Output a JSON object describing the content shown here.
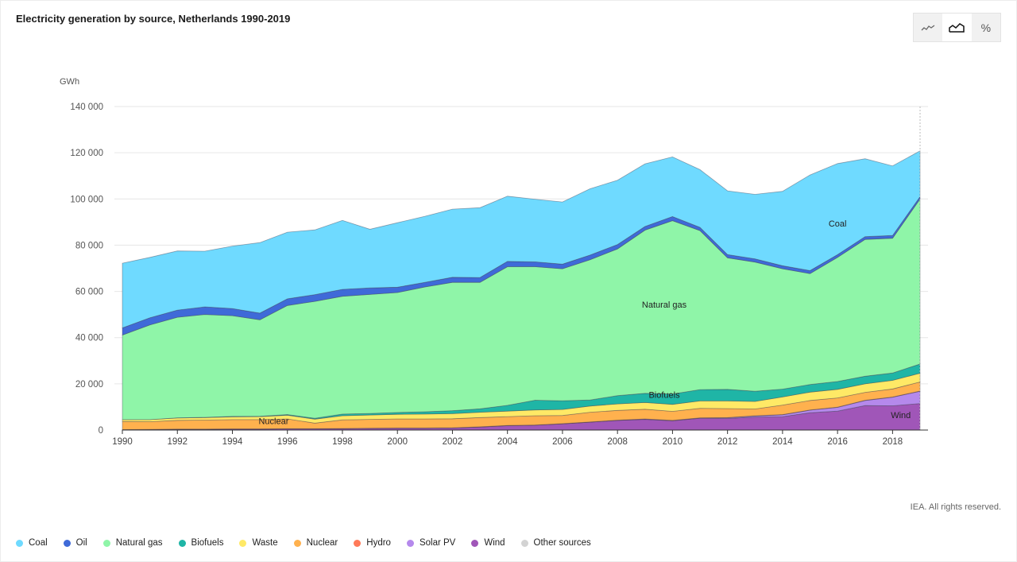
{
  "title": "Electricity generation by source, Netherlands 1990-2019",
  "credit": "IEA. All rights reserved.",
  "toolbar": {
    "buttons": [
      {
        "icon": "line-chart-icon",
        "active": false
      },
      {
        "icon": "area-chart-icon",
        "active": true
      },
      {
        "icon": "percent-icon",
        "label": "%",
        "active": false
      }
    ]
  },
  "legend": [
    {
      "name": "Coal",
      "color": "#6fdaff"
    },
    {
      "name": "Oil",
      "color": "#3f6ad8"
    },
    {
      "name": "Natural gas",
      "color": "#8ff5a8"
    },
    {
      "name": "Biofuels",
      "color": "#1fb5a6"
    },
    {
      "name": "Waste",
      "color": "#ffe966"
    },
    {
      "name": "Nuclear",
      "color": "#ffb14e"
    },
    {
      "name": "Hydro",
      "color": "#ff7a59"
    },
    {
      "name": "Solar PV",
      "color": "#b589ec"
    },
    {
      "name": "Wind",
      "color": "#a056b8"
    },
    {
      "name": "Other sources",
      "color": "#d3d3d3"
    }
  ],
  "chart_data": {
    "type": "area",
    "stacked": true,
    "ylabel": "GWh",
    "ylim": [
      0,
      140000
    ],
    "yticks": [
      0,
      20000,
      40000,
      60000,
      80000,
      100000,
      120000,
      140000
    ],
    "ytick_labels": [
      "0",
      "20 000",
      "40 000",
      "60 000",
      "80 000",
      "100 000",
      "120 000",
      "140 000"
    ],
    "xlim": [
      1990,
      2019
    ],
    "xticks": [
      1990,
      1992,
      1994,
      1996,
      1998,
      2000,
      2002,
      2004,
      2006,
      2008,
      2010,
      2012,
      2014,
      2016,
      2018
    ],
    "x": [
      1990,
      1991,
      1992,
      1993,
      1994,
      1995,
      1996,
      1997,
      1998,
      1999,
      2000,
      2001,
      2002,
      2003,
      2004,
      2005,
      2006,
      2007,
      2008,
      2009,
      2010,
      2011,
      2012,
      2013,
      2014,
      2015,
      2016,
      2017,
      2018,
      2019
    ],
    "grid": true,
    "series": [
      {
        "name": "Wind",
        "color": "#a056b8",
        "values": [
          100,
          200,
          300,
          300,
          400,
          400,
          500,
          500,
          600,
          700,
          800,
          800,
          900,
          1300,
          1900,
          2100,
          2700,
          3400,
          4200,
          4600,
          4000,
          5100,
          5000,
          5600,
          5800,
          7500,
          8200,
          10600,
          10500,
          11500
        ]
      },
      {
        "name": "Solar PV",
        "color": "#b589ec",
        "values": [
          0,
          0,
          0,
          0,
          0,
          0,
          0,
          0,
          0,
          0,
          0,
          0,
          0,
          0,
          0,
          0,
          0,
          0,
          0,
          100,
          100,
          100,
          300,
          500,
          800,
          1100,
          1600,
          2200,
          3700,
          5300
        ]
      },
      {
        "name": "Hydro",
        "color": "#ff7a59",
        "values": [
          100,
          100,
          100,
          100,
          100,
          100,
          100,
          100,
          100,
          100,
          100,
          100,
          100,
          100,
          100,
          100,
          100,
          100,
          100,
          100,
          100,
          100,
          100,
          100,
          100,
          100,
          100,
          100,
          100,
          100
        ]
      },
      {
        "name": "Nuclear",
        "color": "#ffb14e",
        "values": [
          3500,
          3300,
          3800,
          3900,
          4000,
          4000,
          4200,
          2400,
          3700,
          3800,
          3900,
          3900,
          3900,
          4000,
          3800,
          4000,
          3500,
          4200,
          4200,
          4200,
          3900,
          4100,
          3900,
          2900,
          4100,
          4100,
          4000,
          3400,
          3500,
          3900
        ]
      },
      {
        "name": "Waste",
        "color": "#ffe966",
        "values": [
          800,
          900,
          1000,
          1100,
          1200,
          1300,
          1600,
          1700,
          1800,
          1900,
          2000,
          2100,
          2200,
          2300,
          2400,
          2500,
          2600,
          2700,
          2800,
          2900,
          3000,
          3200,
          3300,
          3300,
          3500,
          3600,
          3700,
          3700,
          3700,
          3800
        ]
      },
      {
        "name": "Biofuels",
        "color": "#1fb5a6",
        "values": [
          0,
          0,
          100,
          100,
          200,
          200,
          300,
          400,
          700,
          700,
          800,
          1000,
          1300,
          1500,
          2500,
          4200,
          3800,
          2600,
          3600,
          4000,
          4500,
          4900,
          5000,
          4400,
          3400,
          3300,
          3400,
          3300,
          3200,
          4000
        ]
      },
      {
        "name": "Natural gas",
        "color": "#8ff5a8",
        "values": [
          36600,
          41000,
          43500,
          44500,
          43600,
          41700,
          47200,
          50600,
          51000,
          51500,
          51900,
          54000,
          55500,
          54700,
          60000,
          57800,
          57100,
          60700,
          63500,
          70600,
          75000,
          68800,
          56900,
          55900,
          52100,
          48000,
          53700,
          59200,
          58300,
          71400
        ]
      },
      {
        "name": "Oil",
        "color": "#3f6ad8",
        "values": [
          3100,
          3100,
          3100,
          3300,
          3100,
          2900,
          2900,
          2900,
          3000,
          2800,
          2300,
          2000,
          2200,
          2100,
          2300,
          2100,
          2000,
          2000,
          1900,
          1600,
          1800,
          1400,
          1400,
          1400,
          1300,
          1300,
          1200,
          1200,
          1200,
          1000
        ]
      },
      {
        "name": "Coal",
        "color": "#6fdaff",
        "values": [
          28000,
          26100,
          25600,
          24100,
          27000,
          30500,
          28800,
          28000,
          29800,
          25400,
          27900,
          28600,
          29500,
          30200,
          28200,
          27100,
          26900,
          28700,
          27800,
          27100,
          25800,
          25000,
          27600,
          27900,
          32200,
          41400,
          39400,
          33700,
          30100,
          19800
        ]
      },
      {
        "name": "Other sources",
        "color": "#d3d3d3",
        "values": [
          0,
          0,
          0,
          0,
          0,
          0,
          0,
          0,
          0,
          0,
          0,
          0,
          0,
          0,
          0,
          0,
          0,
          0,
          0,
          0,
          0,
          0,
          0,
          0,
          0,
          0,
          0,
          0,
          0,
          0
        ]
      }
    ],
    "annotations": [
      {
        "text": "Coal",
        "x": 2016,
        "y": 88000
      },
      {
        "text": "Natural gas",
        "x": 2009.7,
        "y": 53000
      },
      {
        "text": "Biofuels",
        "x": 2009.7,
        "y": 14000
      },
      {
        "text": "Nuclear",
        "x": 1995.5,
        "y": 2500
      },
      {
        "text": "Wind",
        "x": 2018.3,
        "y": 5200
      }
    ]
  }
}
